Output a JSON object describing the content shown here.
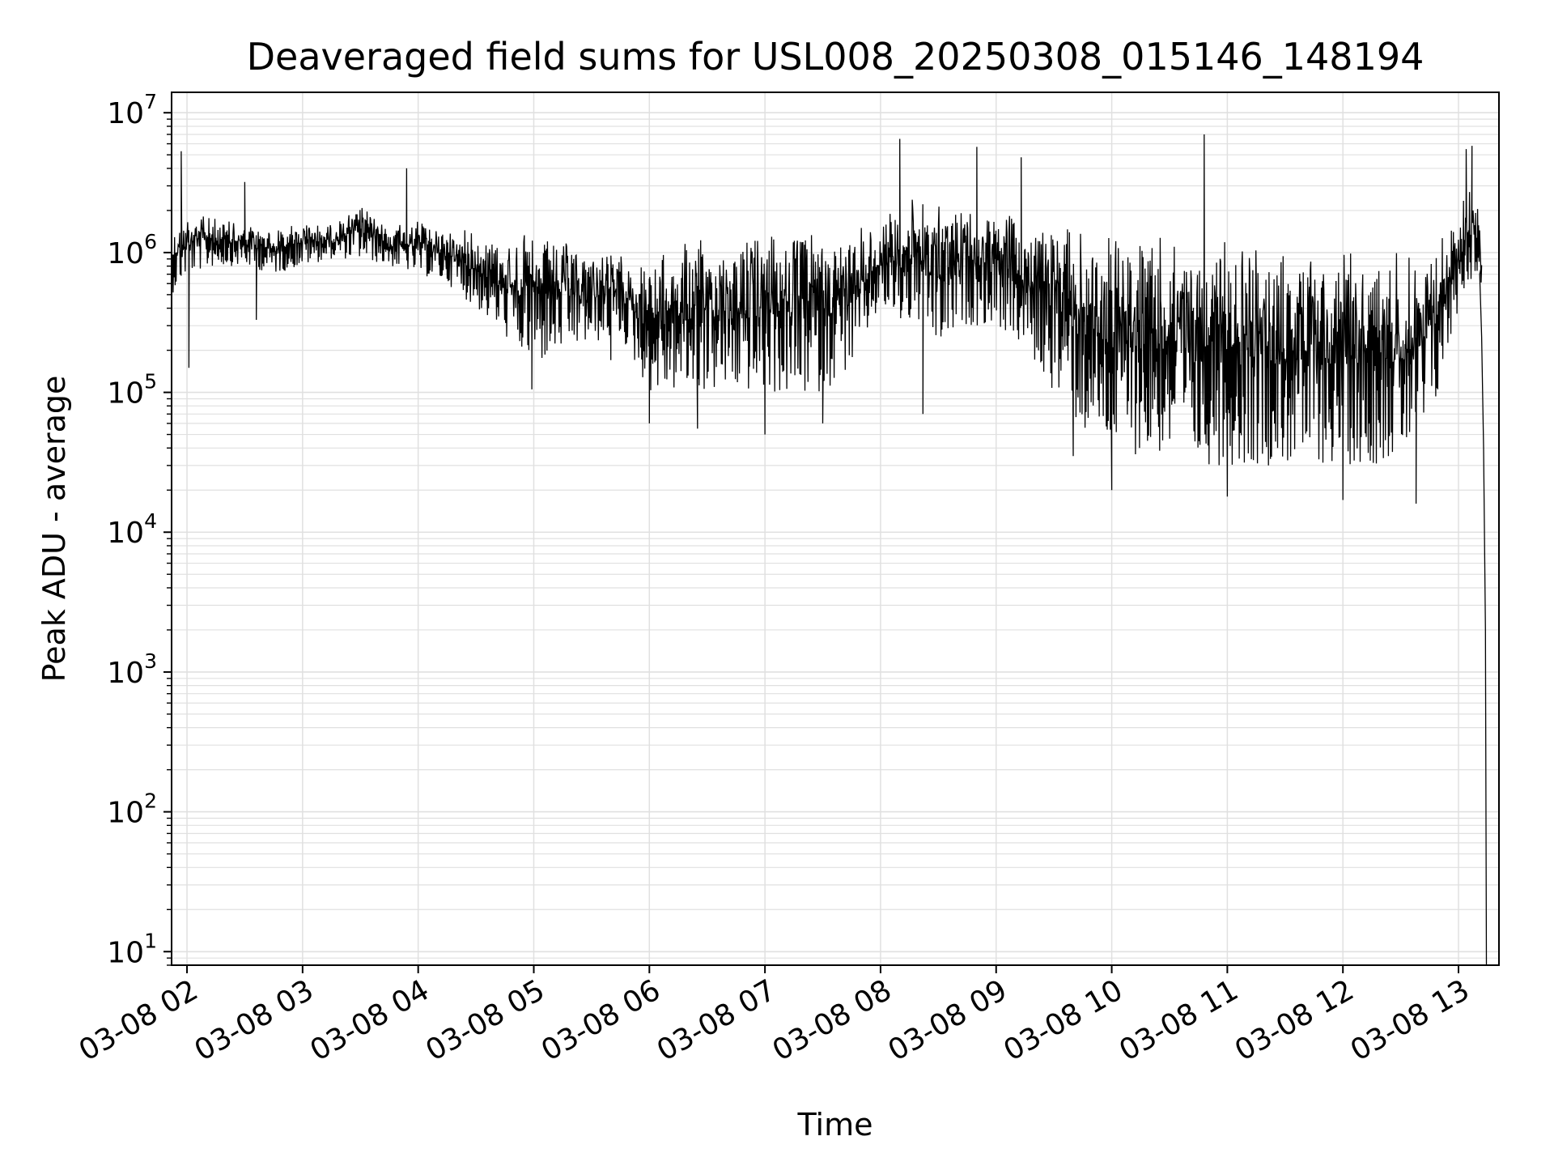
{
  "chart_data": {
    "type": "line",
    "title": "Deaveraged field sums for USL008_20250308_015146_148194",
    "xlabel": "Time",
    "ylabel": "Peak ADU - average",
    "yscale": "log",
    "ylim": [
      8,
      14000000
    ],
    "xlim": [
      "2025-03-08T01:52:00",
      "2025-03-08T13:21:00"
    ],
    "x_ticks": [
      {
        "value": "2025-03-08T02:00:00",
        "label": "03-08 02"
      },
      {
        "value": "2025-03-08T03:00:00",
        "label": "03-08 03"
      },
      {
        "value": "2025-03-08T04:00:00",
        "label": "03-08 04"
      },
      {
        "value": "2025-03-08T05:00:00",
        "label": "03-08 05"
      },
      {
        "value": "2025-03-08T06:00:00",
        "label": "03-08 06"
      },
      {
        "value": "2025-03-08T07:00:00",
        "label": "03-08 07"
      },
      {
        "value": "2025-03-08T08:00:00",
        "label": "03-08 08"
      },
      {
        "value": "2025-03-08T09:00:00",
        "label": "03-08 09"
      },
      {
        "value": "2025-03-08T10:00:00",
        "label": "03-08 10"
      },
      {
        "value": "2025-03-08T11:00:00",
        "label": "03-08 11"
      },
      {
        "value": "2025-03-08T12:00:00",
        "label": "03-08 12"
      },
      {
        "value": "2025-03-08T13:00:00",
        "label": "03-08 13"
      }
    ],
    "y_ticks": [
      {
        "value": 10,
        "base": "10",
        "exp": "1"
      },
      {
        "value": 100,
        "base": "10",
        "exp": "2"
      },
      {
        "value": 1000,
        "base": "10",
        "exp": "3"
      },
      {
        "value": 10000,
        "base": "10",
        "exp": "4"
      },
      {
        "value": 100000,
        "base": "10",
        "exp": "5"
      },
      {
        "value": 1000000,
        "base": "10",
        "exp": "6"
      },
      {
        "value": 10000000,
        "base": "10",
        "exp": "7"
      }
    ],
    "grid": true,
    "line_color": "#000000",
    "grid_color": "#e0e0e0",
    "series": [
      {
        "envelope": {
          "x": [
            "2025-03-08T01:52:00",
            "2025-03-08T02:00:00",
            "2025-03-08T02:15:00",
            "2025-03-08T02:30:00",
            "2025-03-08T02:45:00",
            "2025-03-08T03:00:00",
            "2025-03-08T03:15:00",
            "2025-03-08T03:30:00",
            "2025-03-08T03:45:00",
            "2025-03-08T04:00:00",
            "2025-03-08T04:15:00",
            "2025-03-08T04:30:00",
            "2025-03-08T04:45:00",
            "2025-03-08T05:00:00",
            "2025-03-08T05:15:00",
            "2025-03-08T05:30:00",
            "2025-03-08T05:45:00",
            "2025-03-08T06:00:00",
            "2025-03-08T06:15:00",
            "2025-03-08T06:30:00",
            "2025-03-08T06:45:00",
            "2025-03-08T07:00:00",
            "2025-03-08T07:15:00",
            "2025-03-08T07:30:00",
            "2025-03-08T07:45:00",
            "2025-03-08T08:00:00",
            "2025-03-08T08:10:00",
            "2025-03-08T08:20:00",
            "2025-03-08T08:30:00",
            "2025-03-08T08:45:00",
            "2025-03-08T09:00:00",
            "2025-03-08T09:15:00",
            "2025-03-08T09:30:00",
            "2025-03-08T09:45:00",
            "2025-03-08T10:00:00",
            "2025-03-08T10:15:00",
            "2025-03-08T10:30:00",
            "2025-03-08T10:45:00",
            "2025-03-08T11:00:00",
            "2025-03-08T11:15:00",
            "2025-03-08T11:30:00",
            "2025-03-08T11:45:00",
            "2025-03-08T12:00:00",
            "2025-03-08T12:15:00",
            "2025-03-08T12:30:00",
            "2025-03-08T12:45:00",
            "2025-03-08T13:00:00",
            "2025-03-08T13:05:00",
            "2025-03-08T13:10:00",
            "2025-03-08T13:12:00"
          ],
          "upper": [
            1500000,
            2000000,
            1800000,
            1600000,
            1500000,
            1700000,
            1600000,
            2200000,
            1600000,
            1700000,
            1500000,
            1500000,
            1300000,
            1400000,
            1200000,
            1100000,
            1000000,
            900000,
            1200000,
            1300000,
            1400000,
            1400000,
            1500000,
            1500000,
            1500000,
            1700000,
            2500000,
            2500000,
            2300000,
            2200000,
            2000000,
            1800000,
            1700000,
            1600000,
            1500000,
            1400000,
            1300000,
            1200000,
            1200000,
            1100000,
            1100000,
            1100000,
            1100000,
            1100000,
            1100000,
            1200000,
            2000000,
            3500000,
            2500000,
            1000000
          ],
          "lower": [
            500000,
            700000,
            800000,
            800000,
            700000,
            800000,
            900000,
            900000,
            800000,
            700000,
            600000,
            400000,
            250000,
            150000,
            200000,
            220000,
            250000,
            100000,
            100000,
            100000,
            100000,
            100000,
            90000,
            100000,
            150000,
            400000,
            300000,
            300000,
            200000,
            300000,
            300000,
            200000,
            100000,
            50000,
            40000,
            35000,
            35000,
            30000,
            30000,
            30000,
            30000,
            30000,
            30000,
            30000,
            35000,
            50000,
            400000,
            600000,
            700000,
            500000
          ]
        },
        "spikes": [
          {
            "x": "2025-03-08T01:57:00",
            "y": 5300000
          },
          {
            "x": "2025-03-08T02:01:00",
            "y": 150000
          },
          {
            "x": "2025-03-08T02:30:00",
            "y": 3200000
          },
          {
            "x": "2025-03-08T02:36:00",
            "y": 330000
          },
          {
            "x": "2025-03-08T03:54:00",
            "y": 4000000
          },
          {
            "x": "2025-03-08T04:59:00",
            "y": 105000
          },
          {
            "x": "2025-03-08T05:40:00",
            "y": 170000
          },
          {
            "x": "2025-03-08T06:00:00",
            "y": 60000
          },
          {
            "x": "2025-03-08T06:25:00",
            "y": 55000
          },
          {
            "x": "2025-03-08T07:00:00",
            "y": 50000
          },
          {
            "x": "2025-03-08T07:30:00",
            "y": 60000
          },
          {
            "x": "2025-03-08T08:10:00",
            "y": 6500000
          },
          {
            "x": "2025-03-08T08:22:00",
            "y": 70000
          },
          {
            "x": "2025-03-08T08:50:00",
            "y": 5700000
          },
          {
            "x": "2025-03-08T09:13:00",
            "y": 4800000
          },
          {
            "x": "2025-03-08T09:22:00",
            "y": 200000
          },
          {
            "x": "2025-03-08T09:40:00",
            "y": 35000
          },
          {
            "x": "2025-03-08T10:00:00",
            "y": 20000
          },
          {
            "x": "2025-03-08T10:48:00",
            "y": 7000000
          },
          {
            "x": "2025-03-08T11:00:00",
            "y": 18000
          },
          {
            "x": "2025-03-08T12:00:00",
            "y": 17000
          },
          {
            "x": "2025-03-08T12:38:00",
            "y": 16000
          },
          {
            "x": "2025-03-08T13:04:00",
            "y": 5500000
          },
          {
            "x": "2025-03-08T13:07:00",
            "y": 5800000
          }
        ],
        "tail": [
          {
            "x": "2025-03-08T13:11:00",
            "y": 700000
          },
          {
            "x": "2025-03-08T13:12:00",
            "y": 250000
          },
          {
            "x": "2025-03-08T13:13:00",
            "y": 40000
          },
          {
            "x": "2025-03-08T13:14:00",
            "y": 2000
          },
          {
            "x": "2025-03-08T13:14:30",
            "y": 8
          }
        ]
      }
    ]
  }
}
